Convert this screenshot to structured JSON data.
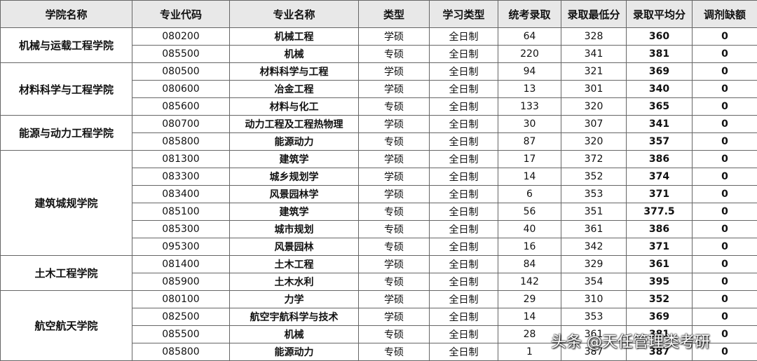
{
  "table": {
    "columns": [
      "学院名称",
      "专业代码",
      "专业名称",
      "类型",
      "学习类型",
      "统考录取",
      "录取最低分",
      "录取平均分",
      "调剂缺额"
    ],
    "groups": [
      {
        "college": "机械与运载工程学院",
        "rows": [
          [
            "080200",
            "机械工程",
            "学硕",
            "全日制",
            "64",
            "328",
            "360",
            "0"
          ],
          [
            "085500",
            "机械",
            "专硕",
            "全日制",
            "220",
            "341",
            "381",
            "0"
          ]
        ]
      },
      {
        "college": "材料科学与工程学院",
        "rows": [
          [
            "080500",
            "材料科学与工程",
            "学硕",
            "全日制",
            "94",
            "321",
            "369",
            "0"
          ],
          [
            "080600",
            "冶金工程",
            "学硕",
            "全日制",
            "13",
            "301",
            "340",
            "0"
          ],
          [
            "085600",
            "材料与化工",
            "专硕",
            "全日制",
            "133",
            "320",
            "365",
            "0"
          ]
        ]
      },
      {
        "college": "能源与动力工程学院",
        "rows": [
          [
            "080700",
            "动力工程及工程热物理",
            "学硕",
            "全日制",
            "30",
            "307",
            "341",
            "0"
          ],
          [
            "085800",
            "能源动力",
            "专硕",
            "全日制",
            "87",
            "320",
            "357",
            "0"
          ]
        ]
      },
      {
        "college": "建筑城规学院",
        "rows": [
          [
            "081300",
            "建筑学",
            "学硕",
            "全日制",
            "17",
            "372",
            "386",
            "0"
          ],
          [
            "083300",
            "城乡规划学",
            "学硕",
            "全日制",
            "14",
            "352",
            "374",
            "0"
          ],
          [
            "083400",
            "风景园林学",
            "学硕",
            "全日制",
            "6",
            "353",
            "371",
            "0"
          ],
          [
            "085100",
            "建筑学",
            "专硕",
            "全日制",
            "56",
            "351",
            "377.5",
            "0"
          ],
          [
            "085300",
            "城市规划",
            "专硕",
            "全日制",
            "40",
            "361",
            "386",
            "0"
          ],
          [
            "095300",
            "风景园林",
            "专硕",
            "全日制",
            "16",
            "342",
            "371",
            "0"
          ]
        ]
      },
      {
        "college": "土木工程学院",
        "rows": [
          [
            "081400",
            "土木工程",
            "学硕",
            "全日制",
            "84",
            "329",
            "361",
            "0"
          ],
          [
            "085900",
            "土木水利",
            "专硕",
            "全日制",
            "142",
            "354",
            "395",
            "0"
          ]
        ]
      },
      {
        "college": "航空航天学院",
        "rows": [
          [
            "080100",
            "力学",
            "学硕",
            "全日制",
            "29",
            "310",
            "352",
            "0"
          ],
          [
            "082500",
            "航空宇航科学与技术",
            "学硕",
            "全日制",
            "14",
            "353",
            "369",
            "0"
          ],
          [
            "085500",
            "机械",
            "专硕",
            "全日制",
            "28",
            "361",
            "381",
            "0"
          ],
          [
            "085800",
            "能源动力",
            "专硕",
            "全日制",
            "1",
            "387",
            "387",
            "0"
          ]
        ]
      }
    ]
  },
  "watermark": "头条 @天任管理类考研"
}
